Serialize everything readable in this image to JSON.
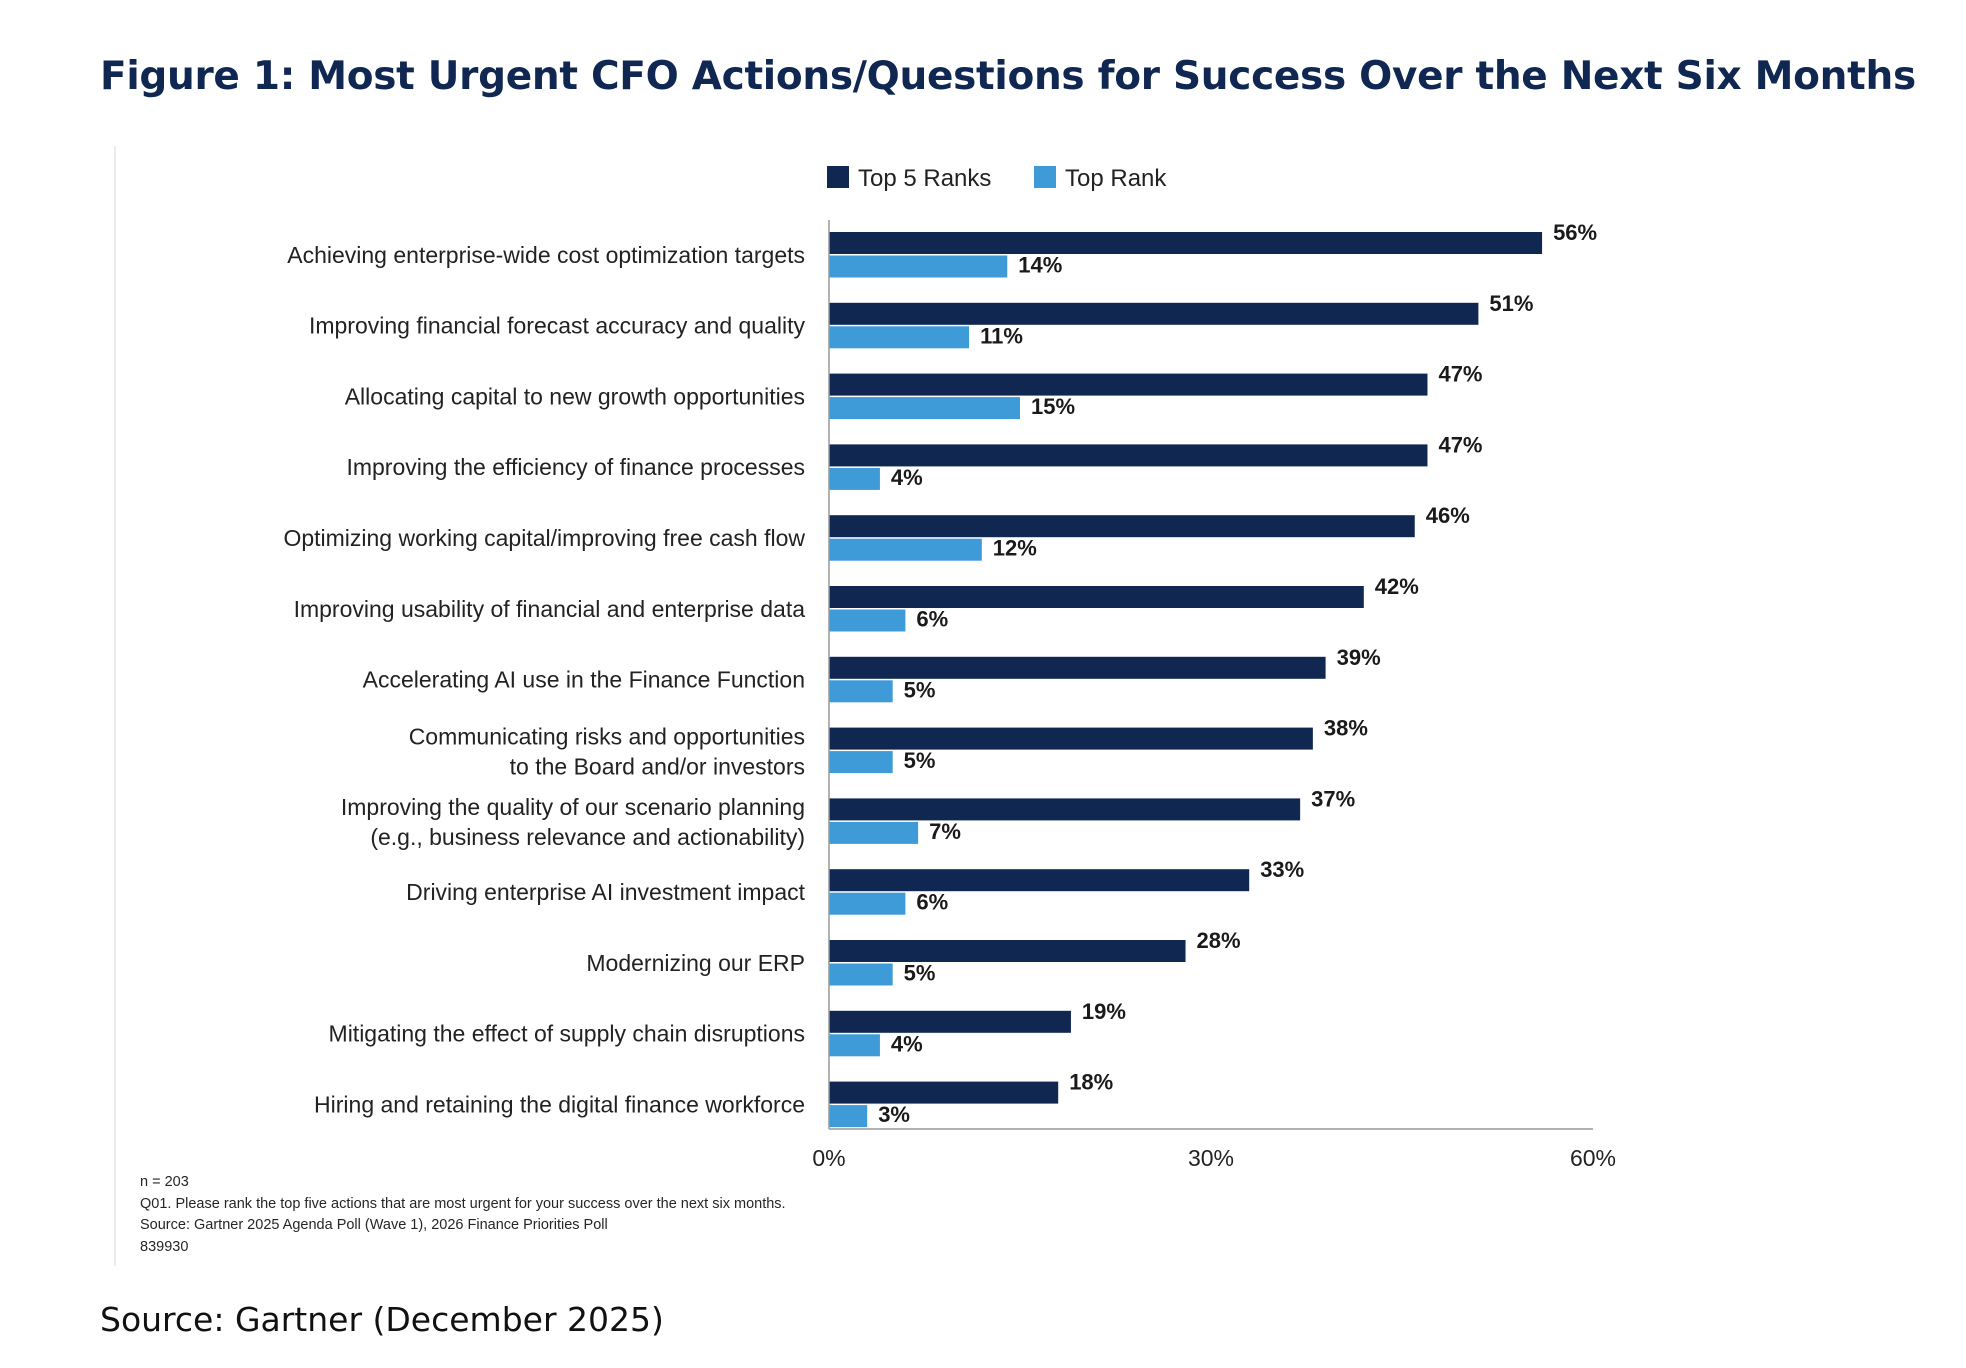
{
  "figure": {
    "title": "Figure 1: Most Urgent CFO Actions/Questions for Success Over the Next Six Months",
    "source": "Source: Gartner (December 2025)"
  },
  "notes": {
    "n": "n = 203",
    "question": "Q01. Please rank the top five actions that are most urgent for your success over the next six months.",
    "source": "Source: Gartner 2025 Agenda Poll (Wave 1), 2026 Finance Priorities Poll",
    "id": "839930"
  },
  "colors": {
    "top5": "#0f2751",
    "top1": "#3f9bd8",
    "axis": "#999999",
    "title": "#0f2751"
  },
  "chart_data": {
    "type": "bar",
    "orientation": "horizontal",
    "categories": [
      [
        "Achieving enterprise-wide cost optimization targets"
      ],
      [
        "Improving financial forecast accuracy and quality"
      ],
      [
        "Allocating capital to new growth opportunities"
      ],
      [
        "Improving the efficiency of finance processes"
      ],
      [
        "Optimizing working capital/improving free cash flow"
      ],
      [
        "Improving usability of financial and enterprise data"
      ],
      [
        "Accelerating AI use in the Finance Function"
      ],
      [
        "Communicating risks and opportunities",
        "to the Board and/or investors"
      ],
      [
        "Improving the quality of our scenario planning",
        "(e.g., business relevance and actionability)"
      ],
      [
        "Driving enterprise AI investment impact"
      ],
      [
        "Modernizing our ERP"
      ],
      [
        "Mitigating the effect of supply chain disruptions"
      ],
      [
        "Hiring and retaining the digital finance workforce"
      ]
    ],
    "series": [
      {
        "name": "Top 5 Ranks",
        "values": [
          56,
          51,
          47,
          47,
          46,
          42,
          39,
          38,
          37,
          33,
          28,
          19,
          18
        ]
      },
      {
        "name": "Top Rank",
        "values": [
          14,
          11,
          15,
          4,
          12,
          6,
          5,
          5,
          7,
          6,
          5,
          4,
          3
        ]
      }
    ],
    "value_suffix": "%",
    "xlim": [
      0,
      60
    ],
    "xticks": [
      0,
      30,
      60
    ],
    "xtick_labels": [
      "0%",
      "30%",
      "60%"
    ],
    "legend": "top-center",
    "grid": false
  }
}
